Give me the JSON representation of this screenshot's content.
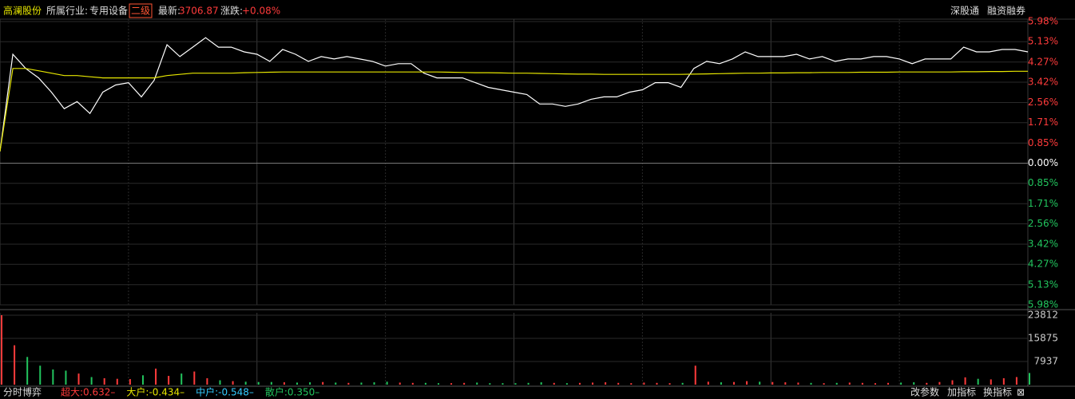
{
  "header": {
    "stock": "高澜股份",
    "industry_label": "所属行业:",
    "industry": "专用设备",
    "level": "二级",
    "latest_label": "最新:",
    "latest": "3706.87",
    "change_label": "涨跌:",
    "change": "+0.08%",
    "links": [
      "深股通",
      "融资融券"
    ]
  },
  "chart_data": [
    {
      "type": "line",
      "xlim": [
        0,
        240
      ],
      "xticks": [
        0,
        30,
        60,
        90,
        120,
        150,
        180,
        210,
        240
      ],
      "ylim": [
        -5.98,
        5.98
      ],
      "yticks": [
        {
          "value": 5.98,
          "label": "5.98%"
        },
        {
          "value": 5.13,
          "label": "5.13%"
        },
        {
          "value": 4.27,
          "label": "4.27%"
        },
        {
          "value": 3.42,
          "label": "3.42%"
        },
        {
          "value": 2.56,
          "label": "2.56%"
        },
        {
          "value": 1.71,
          "label": "1.71%"
        },
        {
          "value": 0.85,
          "label": "0.85%"
        },
        {
          "value": 0,
          "label": "0.00%"
        },
        {
          "value": -0.85,
          "label": "0.85%"
        },
        {
          "value": -1.71,
          "label": "1.71%"
        },
        {
          "value": -2.56,
          "label": "2.56%"
        },
        {
          "value": -3.42,
          "label": "3.42%"
        },
        {
          "value": -4.27,
          "label": "4.27%"
        },
        {
          "value": -5.13,
          "label": "5.13%"
        },
        {
          "value": -5.98,
          "label": "5.98%"
        }
      ],
      "grid": true,
      "up_color": "#ff3b3b",
      "down_color": "#22c55e",
      "zero_color": "#ffffff",
      "x": [
        0,
        3,
        6,
        9,
        12,
        15,
        18,
        21,
        24,
        27,
        30,
        33,
        36,
        39,
        42,
        45,
        48,
        51,
        54,
        57,
        60,
        63,
        66,
        69,
        72,
        75,
        78,
        81,
        84,
        87,
        90,
        93,
        96,
        99,
        102,
        105,
        108,
        111,
        114,
        117,
        120,
        123,
        126,
        129,
        132,
        135,
        138,
        141,
        144,
        147,
        150,
        153,
        156,
        159,
        162,
        165,
        168,
        171,
        174,
        177,
        180,
        183,
        186,
        189,
        192,
        195,
        198,
        201,
        204,
        207,
        210,
        213,
        216,
        219,
        222,
        225,
        228,
        231,
        234,
        237,
        240
      ],
      "series": [
        {
          "color": "#ffffff",
          "values": [
            0.5,
            4.6,
            4.0,
            3.6,
            3.0,
            2.3,
            2.6,
            2.1,
            3.0,
            3.3,
            3.4,
            2.8,
            3.5,
            5.0,
            4.5,
            4.9,
            5.3,
            4.9,
            4.9,
            4.7,
            4.6,
            4.3,
            4.8,
            4.6,
            4.3,
            4.5,
            4.4,
            4.5,
            4.4,
            4.3,
            4.1,
            4.2,
            4.2,
            3.8,
            3.6,
            3.6,
            3.6,
            3.4,
            3.2,
            3.1,
            3.0,
            2.9,
            2.5,
            2.5,
            2.4,
            2.5,
            2.7,
            2.8,
            2.8,
            3.0,
            3.1,
            3.4,
            3.4,
            3.2,
            4.0,
            4.3,
            4.2,
            4.4,
            4.7,
            4.5,
            4.5,
            4.5,
            4.6,
            4.4,
            4.5,
            4.3,
            4.4,
            4.4,
            4.5,
            4.5,
            4.4,
            4.2,
            4.4,
            4.4,
            4.4,
            4.9,
            4.7,
            4.7,
            4.8,
            4.8,
            4.7
          ]
        },
        {
          "color": "#e6e600",
          "values": [
            0.5,
            4.0,
            4.0,
            3.9,
            3.8,
            3.7,
            3.7,
            3.65,
            3.6,
            3.6,
            3.6,
            3.6,
            3.6,
            3.7,
            3.75,
            3.8,
            3.8,
            3.8,
            3.8,
            3.82,
            3.83,
            3.84,
            3.85,
            3.85,
            3.85,
            3.85,
            3.85,
            3.85,
            3.85,
            3.85,
            3.85,
            3.85,
            3.85,
            3.85,
            3.85,
            3.84,
            3.83,
            3.82,
            3.82,
            3.81,
            3.8,
            3.8,
            3.79,
            3.78,
            3.77,
            3.76,
            3.76,
            3.75,
            3.75,
            3.75,
            3.75,
            3.75,
            3.75,
            3.75,
            3.76,
            3.77,
            3.78,
            3.79,
            3.8,
            3.8,
            3.81,
            3.81,
            3.82,
            3.82,
            3.83,
            3.83,
            3.83,
            3.84,
            3.84,
            3.84,
            3.85,
            3.85,
            3.85,
            3.85,
            3.85,
            3.86,
            3.86,
            3.87,
            3.87,
            3.88,
            3.88
          ]
        }
      ]
    },
    {
      "type": "bar",
      "xlim": [
        0,
        240
      ],
      "xticks": [
        0,
        30,
        60,
        90,
        120,
        150,
        180,
        210,
        240
      ],
      "ylim": [
        0,
        23812
      ],
      "yticks": [
        7937,
        15875,
        23812
      ],
      "grid": true,
      "x": [
        0,
        3,
        6,
        9,
        12,
        15,
        18,
        21,
        24,
        27,
        30,
        33,
        36,
        39,
        42,
        45,
        48,
        51,
        54,
        57,
        60,
        63,
        66,
        69,
        72,
        75,
        78,
        81,
        84,
        87,
        90,
        93,
        96,
        99,
        102,
        105,
        108,
        111,
        114,
        117,
        120,
        123,
        126,
        129,
        132,
        135,
        138,
        141,
        144,
        147,
        150,
        153,
        156,
        159,
        162,
        165,
        168,
        171,
        174,
        177,
        180,
        183,
        186,
        189,
        192,
        195,
        198,
        201,
        204,
        207,
        210,
        213,
        216,
        219,
        222,
        225,
        228,
        231,
        234,
        237,
        240
      ],
      "series": [
        {
          "values": [
            23800,
            13500,
            9500,
            6500,
            5200,
            4800,
            3800,
            2600,
            2200,
            2000,
            1900,
            3200,
            5500,
            3000,
            3800,
            4500,
            2200,
            1500,
            1200,
            1000,
            900,
            900,
            800,
            700,
            800,
            900,
            700,
            600,
            700,
            800,
            1000,
            700,
            600,
            600,
            500,
            500,
            600,
            700,
            500,
            500,
            500,
            600,
            800,
            600,
            500,
            600,
            700,
            800,
            600,
            500,
            700,
            600,
            500,
            600,
            6500,
            1000,
            800,
            900,
            1200,
            1000,
            900,
            800,
            700,
            600,
            500,
            600,
            700,
            600,
            500,
            600,
            700,
            800,
            600,
            900,
            1500,
            2500,
            2000,
            1800,
            2200,
            2600,
            4000
          ]
        }
      ]
    }
  ],
  "footer": {
    "title": "分时博弈",
    "indicators": [
      {
        "text": "超大:0.632–",
        "color": "#ff3b3b"
      },
      {
        "text": "大户:-0.434–",
        "color": "#e6e600"
      },
      {
        "text": "中户:-0.548–",
        "color": "#33ccff"
      },
      {
        "text": "散户:0.350–",
        "color": "#22c55e"
      }
    ],
    "buttons": [
      "改参数",
      "加指标",
      "换指标",
      "⊠"
    ]
  }
}
